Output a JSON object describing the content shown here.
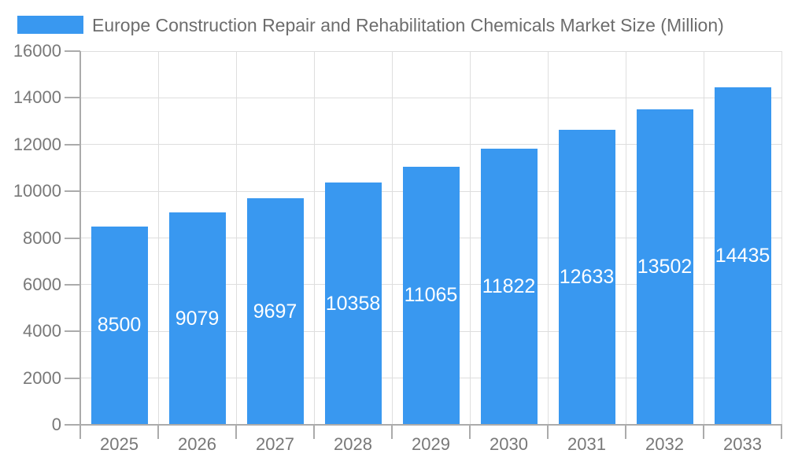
{
  "chart_data": {
    "type": "bar",
    "title": "Europe Construction Repair and Rehabilitation Chemicals Market Size (Million)",
    "categories": [
      "2025",
      "2026",
      "2027",
      "2028",
      "2029",
      "2030",
      "2031",
      "2032",
      "2033"
    ],
    "values": [
      8500,
      9079,
      9697,
      10358,
      11065,
      11822,
      12633,
      13502,
      14435
    ],
    "xlabel": "",
    "ylabel": "",
    "ylim": [
      0,
      16000
    ],
    "ytick_step": 2000,
    "yticks": [
      0,
      2000,
      4000,
      6000,
      8000,
      10000,
      12000,
      14000,
      16000
    ],
    "grid": true,
    "legend_position": "top-left",
    "value_label_position": "inside-center"
  },
  "colors": {
    "bar": "#3998F0",
    "grid": "#DEDEDE",
    "axis": "#ABABAB",
    "tick": "#ABABAB",
    "tick_label": "#787878",
    "title": "#6D6D6D",
    "value_label": "#FFFFFF",
    "background": "#FFFFFF"
  }
}
